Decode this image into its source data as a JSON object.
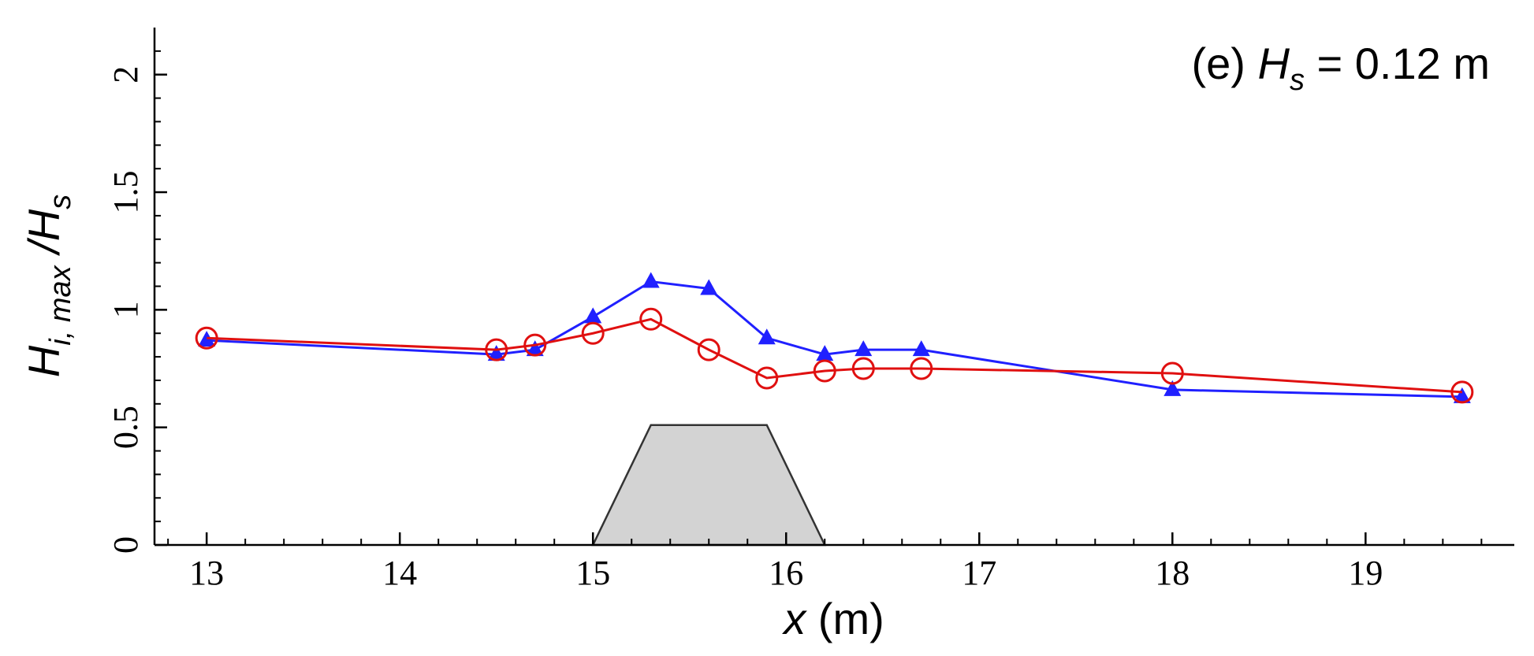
{
  "chart_data": {
    "type": "line",
    "annotation": [
      "(e) ",
      "H",
      "s",
      " = 0.12 m"
    ],
    "x_label": [
      "x",
      " (m)"
    ],
    "y_label": [
      "H",
      "i, max",
      " /H",
      "s"
    ],
    "x": [
      13,
      14.5,
      14.7,
      15,
      15.3,
      15.6,
      15.9,
      16.2,
      16.4,
      16.7,
      18,
      19.5
    ],
    "series": [
      {
        "color": "#2020ff",
        "marker": "triangle",
        "values": [
          0.87,
          0.81,
          0.83,
          0.97,
          1.12,
          1.09,
          0.88,
          0.81,
          0.83,
          0.83,
          0.66,
          0.63
        ]
      },
      {
        "color": "#e01010",
        "marker": "circle",
        "values": [
          0.88,
          0.83,
          0.85,
          0.9,
          0.96,
          0.83,
          0.71,
          0.74,
          0.75,
          0.75,
          0.73,
          0.65
        ]
      }
    ],
    "structure": {
      "x": [
        15,
        15.3,
        15.9,
        16.2
      ],
      "y": [
        0,
        0.51,
        0.51,
        0
      ],
      "color": "#d3d3d3"
    },
    "xlim": [
      12.73,
      19.77
    ],
    "ylim": [
      0,
      2.2
    ],
    "xticks": [
      13,
      14,
      15,
      16,
      17,
      18,
      19
    ],
    "yticks": [
      0,
      0.5,
      1,
      1.5,
      2
    ],
    "xminorticks": [
      12.8,
      13.2,
      13.4,
      13.6,
      13.8,
      14.2,
      14.4,
      14.6,
      14.8,
      15.2,
      15.4,
      15.6,
      15.8,
      16.2,
      16.4,
      16.6,
      16.8,
      17.2,
      17.4,
      17.6,
      17.8,
      18.2,
      18.4,
      18.6,
      18.8,
      19.2,
      19.4,
      19.6
    ],
    "yminorticks": [
      0.1,
      0.2,
      0.3,
      0.4,
      0.6,
      0.7,
      0.8,
      0.9,
      1.1,
      1.2,
      1.3,
      1.4,
      1.6,
      1.7,
      1.8,
      1.9,
      2.1
    ]
  }
}
